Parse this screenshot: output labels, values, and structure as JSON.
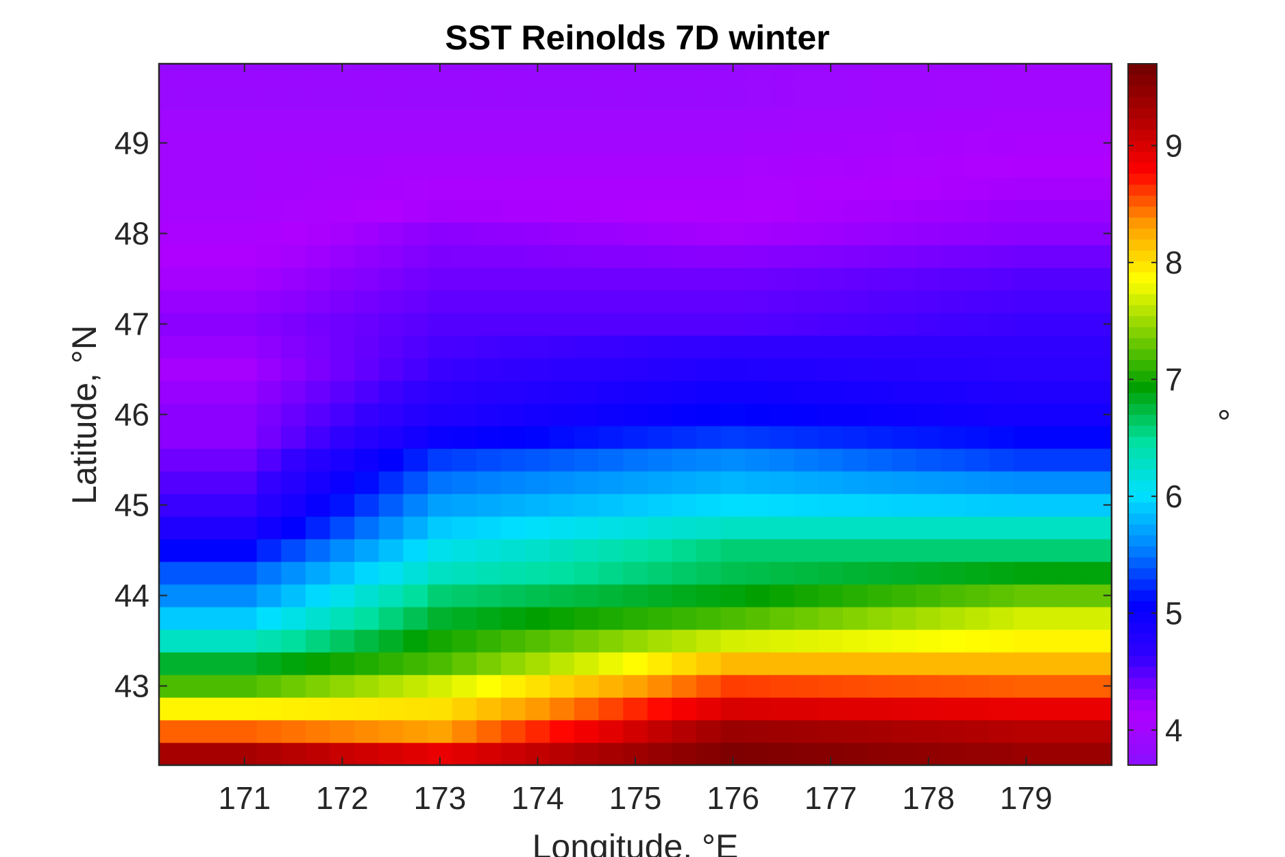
{
  "chart_data": {
    "type": "heatmap",
    "title": "SST Reinolds 7D winter",
    "xlabel": "Longitude, °E",
    "ylabel": "Latitude, °N",
    "colorbar_label": "°",
    "xlim": [
      170.125,
      179.875
    ],
    "ylim": [
      42.125,
      49.875
    ],
    "xticks": [
      171,
      172,
      173,
      174,
      175,
      176,
      177,
      178,
      179
    ],
    "yticks": [
      43,
      44,
      45,
      46,
      47,
      48,
      49
    ],
    "clim": [
      3.7,
      9.7
    ],
    "cticks": [
      4,
      5,
      6,
      7,
      8,
      9
    ],
    "colormap": [
      "#8a10ff",
      "#b000ff",
      "#3300ff",
      "#0000ff",
      "#0080ff",
      "#00e0ff",
      "#00e0a0",
      "#00a000",
      "#80d000",
      "#ffff00",
      "#ffa000",
      "#ff0000",
      "#b00000",
      "#700000"
    ],
    "grid": false,
    "cell_size_deg": 0.25,
    "lat_values": [
      42.25,
      42.5,
      42.75,
      43.0,
      43.25,
      43.5,
      43.75,
      44.0,
      44.25,
      44.5,
      44.75,
      45.0,
      45.25,
      45.5,
      45.75,
      46.0,
      46.5,
      47.0,
      47.5,
      48.0,
      48.5,
      49.0,
      49.5
    ],
    "lon_profiles": {
      "west_171": [
        9.3,
        8.5,
        7.9,
        7.2,
        6.8,
        6.3,
        5.9,
        5.6,
        5.4,
        5.1,
        4.8,
        4.6,
        4.5,
        4.4,
        4.3,
        4.3,
        4.2,
        4.3,
        4.2,
        4.1,
        4.0,
        4.0,
        3.9
      ],
      "mid_173": [
        8.9,
        8.3,
        8.0,
        7.7,
        7.2,
        7.0,
        6.8,
        6.6,
        6.3,
        6.1,
        5.9,
        5.7,
        5.5,
        5.3,
        5.0,
        4.8,
        4.6,
        4.5,
        4.4,
        4.3,
        4.1,
        4.0,
        3.9
      ],
      "center_176": [
        9.6,
        9.4,
        9.0,
        8.6,
        8.2,
        7.7,
        7.2,
        6.9,
        6.7,
        6.6,
        6.3,
        6.0,
        5.8,
        5.6,
        5.3,
        5.1,
        4.8,
        4.5,
        4.4,
        4.2,
        4.1,
        4.0,
        3.9
      ],
      "east_179": [
        9.4,
        9.2,
        8.9,
        8.5,
        8.2,
        7.9,
        7.7,
        7.3,
        6.9,
        6.6,
        6.3,
        5.9,
        5.6,
        5.3,
        5.1,
        4.9,
        4.7,
        4.6,
        4.5,
        4.3,
        4.2,
        4.1,
        4.0
      ]
    }
  }
}
